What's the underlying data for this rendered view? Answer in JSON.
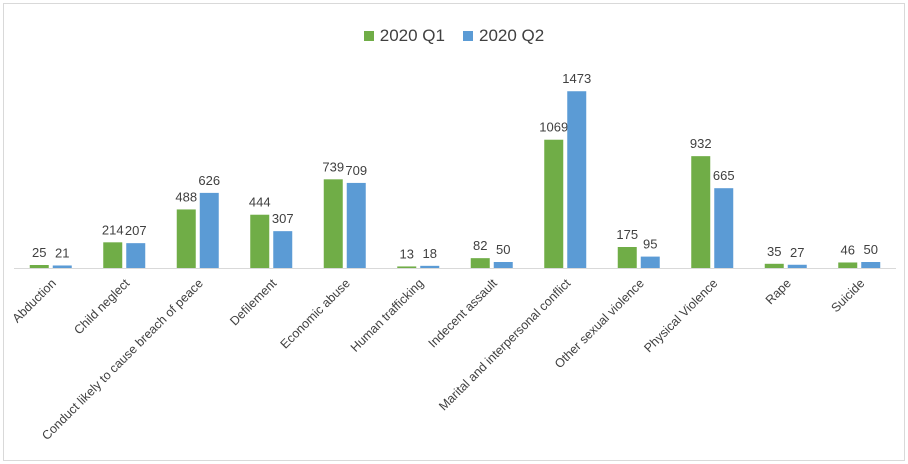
{
  "chart_data": {
    "type": "bar",
    "title": "",
    "xlabel": "",
    "ylabel": "",
    "categories": [
      "Abduction",
      "Child neglect",
      "Conduct likely to cause breach of peace",
      "Defilement",
      "Economic abuse",
      "Human trafficking",
      "Indecent assault",
      "Marital and interpersonal conflict",
      "Other sexual violence",
      "Physical Violence",
      "Rape",
      "Suicide"
    ],
    "series": [
      {
        "name": "2020 Q1",
        "color": "#70ad47",
        "values": [
          25,
          214,
          488,
          444,
          739,
          13,
          82,
          1069,
          175,
          932,
          35,
          46
        ]
      },
      {
        "name": "2020 Q2",
        "color": "#5b9bd5",
        "values": [
          21,
          207,
          626,
          307,
          709,
          18,
          50,
          1473,
          95,
          665,
          27,
          50
        ]
      }
    ],
    "ylim": [
      0,
      1500
    ],
    "grid": false,
    "legend_position": "top-center",
    "data_labels": true
  }
}
